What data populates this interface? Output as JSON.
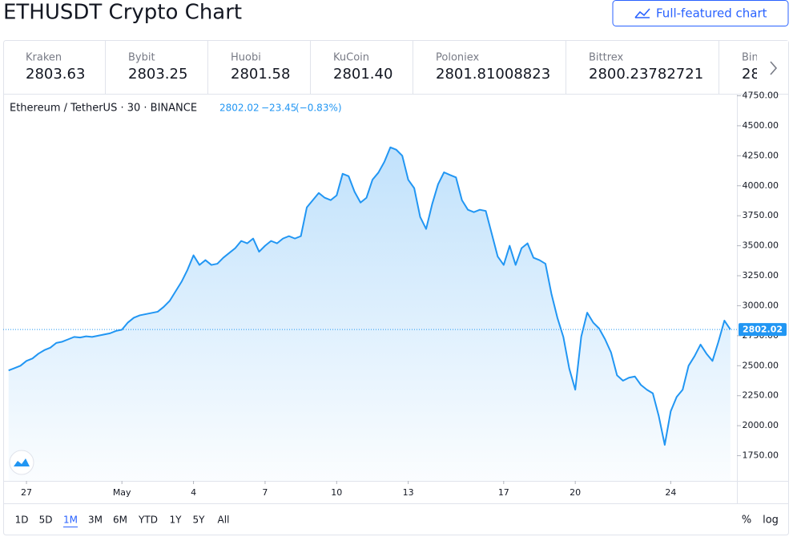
{
  "header": {
    "title": "ETHUSDT Crypto Chart",
    "button": "Full-featured chart"
  },
  "exchanges": [
    {
      "name": "Kraken",
      "price": "2803.63"
    },
    {
      "name": "Bybit",
      "price": "2803.25"
    },
    {
      "name": "Huobi",
      "price": "2801.58"
    },
    {
      "name": "KuCoin",
      "price": "2801.40"
    },
    {
      "name": "Poloniex",
      "price": "2801.81008823"
    },
    {
      "name": "Bittrex",
      "price": "2800.23782721"
    },
    {
      "name": "Bin",
      "price": "28"
    }
  ],
  "chart_data": {
    "type": "line",
    "color": "#2196f3",
    "legend": {
      "symbol": "Ethereum / TetherUS · 30 · BINANCE",
      "price": "2802.02",
      "change": "−23.45",
      "change_pct": "(−0.83%)"
    },
    "price_label": "2802.02",
    "values": [
      2461,
      2480,
      2500,
      2540,
      2560,
      2600,
      2630,
      2650,
      2690,
      2700,
      2720,
      2740,
      2735,
      2745,
      2740,
      2750,
      2760,
      2770,
      2790,
      2800,
      2860,
      2900,
      2920,
      2930,
      2940,
      2950,
      2990,
      3040,
      3120,
      3200,
      3300,
      3420,
      3340,
      3380,
      3340,
      3350,
      3400,
      3440,
      3480,
      3540,
      3520,
      3560,
      3450,
      3500,
      3540,
      3520,
      3560,
      3580,
      3560,
      3580,
      3820,
      3880,
      3940,
      3900,
      3880,
      3920,
      4100,
      4080,
      3950,
      3860,
      3900,
      4050,
      4110,
      4200,
      4320,
      4300,
      4250,
      4050,
      3980,
      3740,
      3640,
      3845,
      4012,
      4112,
      4090,
      4070,
      3880,
      3800,
      3780,
      3800,
      3790,
      3600,
      3410,
      3340,
      3500,
      3340,
      3480,
      3520,
      3400,
      3380,
      3350,
      3100,
      2900,
      2740,
      2475,
      2300,
      2742,
      2942,
      2860,
      2810,
      2720,
      2610,
      2420,
      2375,
      2400,
      2410,
      2340,
      2300,
      2270,
      2080,
      1840,
      2120,
      2240,
      2300,
      2500,
      2580,
      2676,
      2600,
      2540,
      2700,
      2876,
      2802.02
    ],
    "xlim": [
      -0.9,
      122.1
    ],
    "xticks": [
      {
        "value": 3,
        "label": "27"
      },
      {
        "value": 19,
        "label": "May"
      },
      {
        "value": 31,
        "label": "4"
      },
      {
        "value": 43,
        "label": "7"
      },
      {
        "value": 55,
        "label": "10"
      },
      {
        "value": 67,
        "label": "13"
      },
      {
        "value": 83,
        "label": "17"
      },
      {
        "value": 95,
        "label": "20"
      },
      {
        "value": 111,
        "label": "24"
      }
    ],
    "ylim": [
      1540,
      4760
    ],
    "yticks": [
      {
        "value": 1750,
        "label": "1750.00"
      },
      {
        "value": 2000,
        "label": "2000.00"
      },
      {
        "value": 2250,
        "label": "2250.00"
      },
      {
        "value": 2500,
        "label": "2500.00"
      },
      {
        "value": 2750,
        "label": "2750.00"
      },
      {
        "value": 3000,
        "label": "3000.00"
      },
      {
        "value": 3250,
        "label": "3250.00"
      },
      {
        "value": 3500,
        "label": "3500.00"
      },
      {
        "value": 3750,
        "label": "3750.00"
      },
      {
        "value": 4000,
        "label": "4000.00"
      },
      {
        "value": 4250,
        "label": "4250.00"
      },
      {
        "value": 4500,
        "label": "4500.00"
      },
      {
        "value": 4750,
        "label": "4750.00"
      }
    ],
    "grid": false
  },
  "range_buttons": [
    "1D",
    "5D",
    "1M",
    "3M",
    "6M",
    "YTD",
    "1Y",
    "5Y",
    "All"
  ],
  "active_range": 2,
  "scale_buttons": [
    "%",
    "log"
  ]
}
